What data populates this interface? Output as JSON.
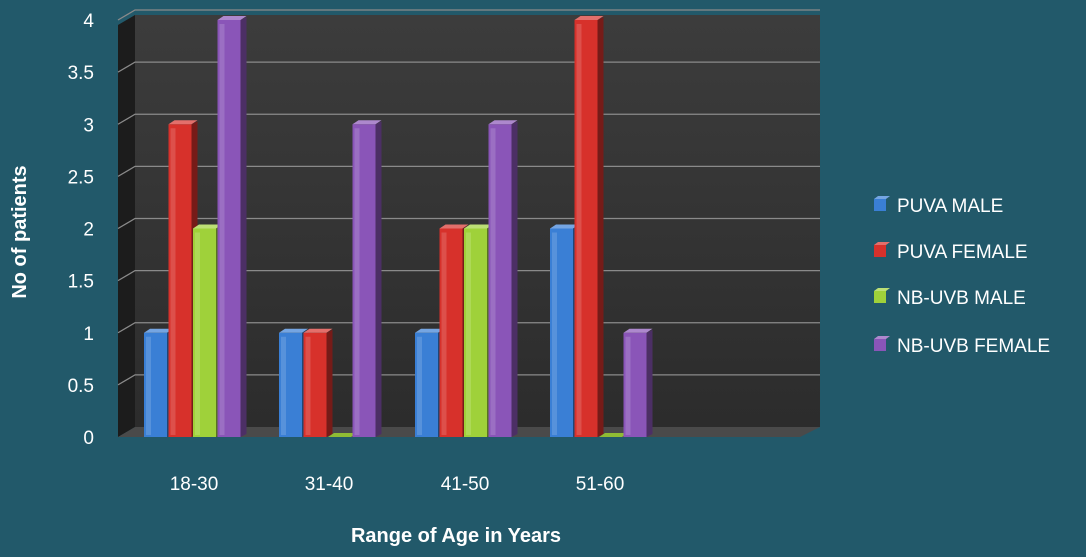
{
  "chart_data": {
    "type": "bar",
    "title": "",
    "xlabel": "Range of Age in Years",
    "ylabel": "No of patients",
    "categories": [
      "18-30",
      "31-40",
      "41-50",
      "51-60"
    ],
    "ylim": [
      0,
      4
    ],
    "yticks": [
      "0",
      "0.5",
      "1",
      "1.5",
      "2",
      "2.5",
      "3",
      "3.5",
      "4"
    ],
    "grid": true,
    "legend_position": "right",
    "series": [
      {
        "name": "PUVA MALE",
        "values": [
          1,
          1,
          1,
          2
        ],
        "color": "#3a7fd5"
      },
      {
        "name": "PUVA FEMALE",
        "values": [
          3,
          1,
          2,
          4
        ],
        "color": "#d7312b"
      },
      {
        "name": "NB-UVB MALE",
        "values": [
          2,
          0,
          2,
          0
        ],
        "color": "#9fd13a"
      },
      {
        "name": "NB-UVB FEMALE",
        "values": [
          4,
          3,
          3,
          1
        ],
        "color": "#8a55b8"
      }
    ]
  }
}
